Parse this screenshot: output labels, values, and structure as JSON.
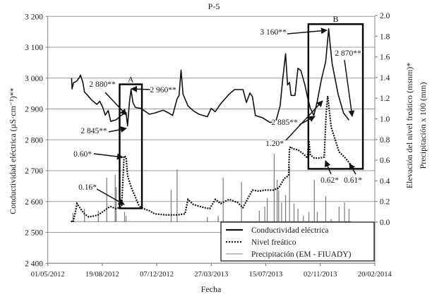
{
  "chart_data": {
    "type": "line",
    "title": "P-5",
    "xlabel": "Fecha",
    "ylabel_left": "Conductividad eléctrica (µS·cm⁻¹)**",
    "ylabel_right_1": "Elevación del nivel freático (msnm)*",
    "ylabel_right_2": "Precipitación x 100 (mm)",
    "x_unit": "days since 01/05/2012",
    "x_ticks": [
      "01/05/2012",
      "19/08/2012",
      "07/12/2012",
      "27/03/2013",
      "15/07/2013",
      "02/11/2013",
      "20/02/2014"
    ],
    "y_left_ticks": [
      "3 200",
      "3 100",
      "3 000",
      "2 900",
      "2 800",
      "2 700",
      "2 600",
      "2 500",
      "2 400"
    ],
    "y_right_ticks": [
      "2.0",
      "1.8",
      "1.6",
      "1.4",
      "1.2",
      "1.0",
      "0.8",
      "0.6",
      "0.4",
      "0.2",
      "0.0"
    ],
    "y_left_range": [
      2400,
      3200
    ],
    "y_right_range": [
      0.0,
      2.0
    ],
    "grid": true,
    "legend_position": "bottom-right",
    "series": [
      {
        "name": "Conductividad eléctrica",
        "axis": "left",
        "style": "solid-thick",
        "x": [
          48,
          49,
          52,
          58,
          63,
          66,
          71,
          74,
          80,
          88,
          99,
          105,
          111,
          116,
          122,
          127,
          138,
          149,
          158,
          161,
          165,
          168,
          172,
          177,
          188,
          205,
          216,
          233,
          244,
          252,
          261,
          265,
          269,
          273,
          283,
          294,
          305,
          322,
          330,
          338,
          349,
          366,
          377,
          394,
          401,
          408,
          413,
          419,
          433,
          449,
          461,
          469,
          474,
          480,
          484,
          488,
          491,
          499,
          505,
          511,
          519,
          524,
          530,
          537,
          544,
          552,
          561,
          567,
          570,
          574,
          586,
          597,
          608
        ],
        "values": [
          3000,
          2965,
          2985,
          2990,
          3000,
          3010,
          2985,
          2955,
          2945,
          2930,
          2915,
          2925,
          2905,
          2880,
          2895,
          2860,
          2865,
          2880,
          2888,
          2845,
          2925,
          2963,
          2920,
          2905,
          2902,
          2883,
          2887,
          2896,
          2887,
          2879,
          2933,
          2944,
          3026,
          2948,
          2910,
          2894,
          2883,
          2875,
          2902,
          2891,
          2917,
          2948,
          2963,
          2963,
          2921,
          2952,
          2940,
          2879,
          2872,
          2856,
          2864,
          2910,
          2993,
          3079,
          2978,
          2986,
          2944,
          2944,
          3032,
          3024,
          2978,
          2940,
          2902,
          2879,
          2925,
          2993,
          3054,
          3160,
          3108,
          3047,
          2948,
          2887,
          2864
        ]
      },
      {
        "name": "Nivel freático",
        "axis": "right",
        "style": "dotted",
        "x": [
          47,
          51,
          55,
          59,
          66,
          74,
          83,
          94,
          102,
          111,
          122,
          127,
          138,
          149,
          154,
          158,
          161,
          169,
          177,
          183,
          188,
          205,
          216,
          238,
          261,
          277,
          283,
          294,
          316,
          327,
          338,
          349,
          366,
          383,
          394,
          405,
          413,
          427,
          438,
          455,
          466,
          477,
          486,
          488,
          491,
          494,
          505,
          516,
          524,
          526,
          527,
          530,
          538,
          549,
          558,
          562,
          565,
          572,
          580,
          588,
          599,
          611
        ],
        "values": [
          0.01,
          0.0,
          0.08,
          0.18,
          0.13,
          0.08,
          0.05,
          0.06,
          0.07,
          0.1,
          0.14,
          0.15,
          0.13,
          0.15,
          0.64,
          0.63,
          0.45,
          0.33,
          0.24,
          0.17,
          0.14,
          0.11,
          0.08,
          0.07,
          0.07,
          0.08,
          0.22,
          0.17,
          0.14,
          0.13,
          0.22,
          0.18,
          0.22,
          0.19,
          0.14,
          0.24,
          0.31,
          0.3,
          0.31,
          0.31,
          0.33,
          0.42,
          0.45,
          0.72,
          0.73,
          0.71,
          0.7,
          0.66,
          0.62,
          0.72,
          0.79,
          0.65,
          0.62,
          0.62,
          0.63,
          1.06,
          1.22,
          0.92,
          0.8,
          0.68,
          0.63,
          0.56
        ]
      },
      {
        "name": "Precipitación (EM - FIUADY)",
        "axis": "right",
        "style": "thin-gray-bars",
        "x": [
          51,
          74,
          102,
          119,
          136,
          138,
          155,
          158,
          249,
          261,
          322,
          344,
          354,
          391,
          427,
          438,
          443,
          457,
          463,
          466,
          472,
          480,
          488,
          497,
          505,
          516,
          527,
          538,
          544,
          561,
          572,
          588,
          599,
          608
        ],
        "values": [
          0.09,
          0.13,
          0.11,
          0.43,
          0.46,
          0.34,
          0.1,
          0.06,
          0.31,
          0.51,
          0.05,
          0.06,
          0.43,
          0.39,
          0.11,
          0.15,
          0.23,
          0.66,
          0.41,
          0.31,
          0.19,
          0.26,
          0.54,
          0.18,
          0.13,
          0.06,
          0.1,
          0.41,
          0.1,
          0.25,
          0.03,
          0.15,
          0.19,
          0.13
        ]
      }
    ],
    "boxes": [
      {
        "label": "A",
        "x_range": [
          145,
          190
        ],
        "y_left_range": [
          2578,
          2980
        ]
      },
      {
        "label": "B",
        "x_range": [
          526,
          636
        ],
        "y_left_range": [
          2706,
          3175
        ]
      }
    ],
    "annotations": [
      "2 880**",
      "2 960**",
      "2 845**",
      "0.60*",
      "0.16*",
      "3 160**",
      "2 870**",
      "2 885**",
      "1.20*",
      "0.62*",
      "0.61*"
    ]
  }
}
